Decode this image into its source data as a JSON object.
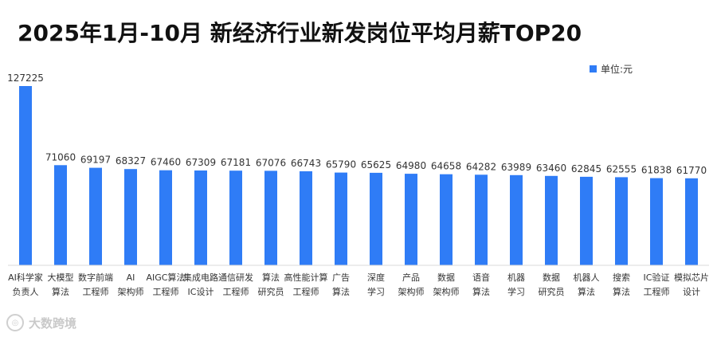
{
  "chart_data": {
    "type": "bar",
    "title": "2025年1月-10月 新经济行业新发岗位平均月薪TOP20",
    "legend": {
      "label": "单位:元",
      "color": "#2f7cf6"
    },
    "categories": [
      [
        "AI科学家",
        "负责人"
      ],
      [
        "大模型",
        "算法"
      ],
      [
        "数字前端",
        "工程师"
      ],
      [
        "AI",
        "架构师"
      ],
      [
        "AIGC算法",
        "工程师"
      ],
      [
        "集成电路",
        "IC设计"
      ],
      [
        "通信研发",
        "工程师"
      ],
      [
        "算法",
        "研究员"
      ],
      [
        "高性能计算",
        "工程师"
      ],
      [
        "广告",
        "算法"
      ],
      [
        "深度",
        "学习"
      ],
      [
        "产品",
        "架构师"
      ],
      [
        "数据",
        "架构师"
      ],
      [
        "语音",
        "算法"
      ],
      [
        "机器",
        "学习"
      ],
      [
        "数据",
        "研究员"
      ],
      [
        "机器人",
        "算法"
      ],
      [
        "搜索",
        "算法"
      ],
      [
        "IC验证",
        "工程师"
      ],
      [
        "模拟芯片",
        "设计"
      ]
    ],
    "values": [
      127225,
      71060,
      69197,
      68327,
      67460,
      67309,
      67181,
      67076,
      66743,
      65790,
      65625,
      64980,
      64658,
      64282,
      63989,
      63460,
      62845,
      62555,
      61838,
      61770
    ],
    "color": "#2f7cf6",
    "ylim": [
      0,
      127225
    ],
    "grid": false
  },
  "watermark": {
    "text": "大数跨境",
    "logo": "大数跨境-logo"
  }
}
